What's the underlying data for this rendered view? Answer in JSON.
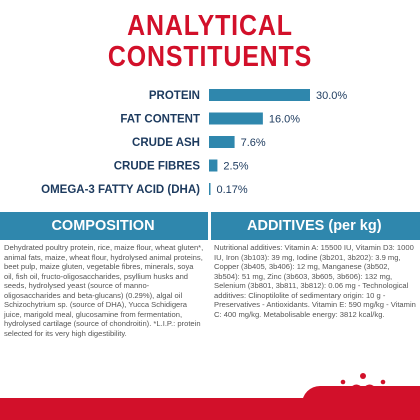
{
  "header": {
    "title_line1": "ANALYTICAL",
    "title_line2": "CONSTITUENTS"
  },
  "colors": {
    "brand_red": "#d2102a",
    "bar_blue": "#2f87ad",
    "label_navy": "#1c3a5e"
  },
  "chart_data": {
    "type": "bar",
    "orientation": "horizontal",
    "categories": [
      "PROTEIN",
      "FAT CONTENT",
      "CRUDE ASH",
      "CRUDE FIBRES",
      "OMEGA-3 FATTY ACID (DHA)"
    ],
    "values": [
      30.0,
      16.0,
      7.6,
      2.5,
      0.17
    ],
    "value_labels": [
      "30.0%",
      "16.0%",
      "7.6%",
      "2.5%",
      "0.17%"
    ],
    "unit": "%",
    "xlim": [
      0,
      30
    ],
    "grid": false,
    "legend": "none"
  },
  "sections": {
    "composition": {
      "heading": "COMPOSITION",
      "text": "Dehydrated poultry protein, rice, maize flour, wheat gluten*, animal fats, maize, wheat flour, hydrolysed animal proteins, beet pulp, maize gluten, vegetable fibres, minerals, soya oil, fish oil, fructo-oligosaccharides, psyllium husks and seeds, hydrolysed yeast (source of manno-oligosaccharides and beta-glucans) (0.29%), algal oil Schizochytrium sp. (source of DHA), Yucca Schidigera juice, marigold meal, glucosamine from fermentation, hydrolysed cartilage (source of chondroitin). *L.I.P.: protein selected for its very high digestibility."
    },
    "additives": {
      "heading": "ADDITIVES (per kg)",
      "text": "Nutritional additives: Vitamin A: 15500 IU, Vitamin D3: 1000 IU, Iron (3b103): 39 mg, Iodine (3b201, 3b202): 3.9 mg, Copper (3b405, 3b406): 12 mg, Manganese (3b502, 3b504): 51 mg, Zinc (3b603, 3b605, 3b606): 132 mg, Selenium (3b801, 3b811, 3b812): 0.06 mg - Technological additives: Clinoptilolite of sedimentary origin: 10 g - Preservatives - Antioxidants. Vitamin E: 590 mg/kg - Vitamin C: 400 mg/kg. Metabolisable energy: 3812 kcal/kg."
    }
  }
}
